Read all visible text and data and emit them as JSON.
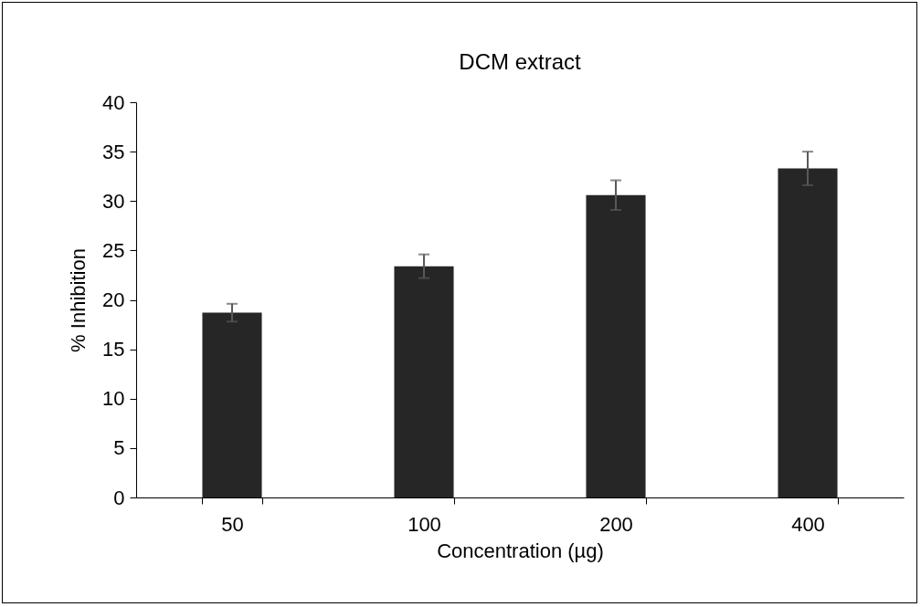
{
  "chart_data": {
    "type": "bar",
    "title": "DCM extract",
    "xlabel": "Concentration (µg)",
    "ylabel": "% Inhibition",
    "categories": [
      "50",
      "100",
      "200",
      "400"
    ],
    "values": [
      18.7,
      23.4,
      30.6,
      33.3
    ],
    "errors": [
      0.9,
      1.2,
      1.5,
      1.7
    ],
    "color": "#262626",
    "ylim": [
      0,
      40
    ],
    "yticks": [
      0,
      5,
      10,
      15,
      20,
      25,
      30,
      35,
      40
    ],
    "grid": false
  }
}
